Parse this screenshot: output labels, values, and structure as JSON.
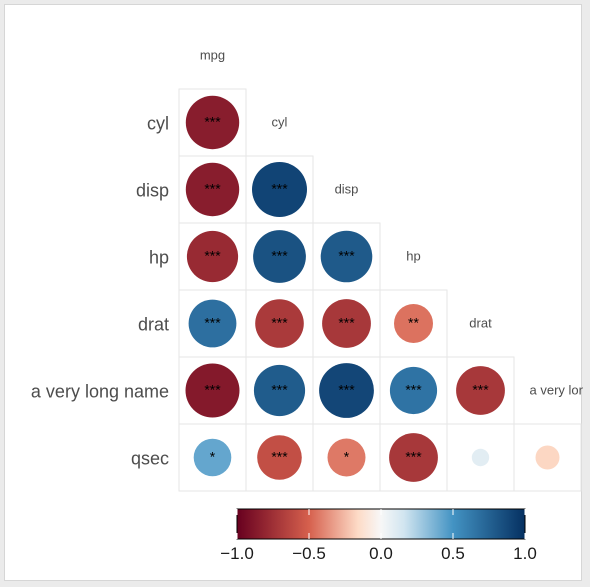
{
  "chart_data": {
    "type": "heatmap",
    "subtype": "correlation-matrix-lower-triangle-circles",
    "variables": [
      "mpg",
      "cyl",
      "disp",
      "hp",
      "drat",
      "a very long name",
      "qsec"
    ],
    "row_labels": [
      "cyl",
      "disp",
      "hp",
      "drat",
      "a very long name",
      "qsec"
    ],
    "col_labels": [
      "mpg",
      "cyl",
      "disp",
      "hp",
      "drat",
      "a very long name"
    ],
    "cells": [
      {
        "row": "cyl",
        "col": "mpg",
        "r": -0.85,
        "sig": "***"
      },
      {
        "row": "disp",
        "col": "mpg",
        "r": -0.85,
        "sig": "***"
      },
      {
        "row": "disp",
        "col": "cyl",
        "r": 0.9,
        "sig": "***"
      },
      {
        "row": "hp",
        "col": "mpg",
        "r": -0.78,
        "sig": "***"
      },
      {
        "row": "hp",
        "col": "cyl",
        "r": 0.83,
        "sig": "***"
      },
      {
        "row": "hp",
        "col": "disp",
        "r": 0.79,
        "sig": "***"
      },
      {
        "row": "drat",
        "col": "mpg",
        "r": 0.68,
        "sig": "***"
      },
      {
        "row": "drat",
        "col": "cyl",
        "r": -0.7,
        "sig": "***"
      },
      {
        "row": "drat",
        "col": "disp",
        "r": -0.71,
        "sig": "***"
      },
      {
        "row": "drat",
        "col": "hp",
        "r": -0.45,
        "sig": "**"
      },
      {
        "row": "a very long name",
        "col": "mpg",
        "r": -0.87,
        "sig": "***"
      },
      {
        "row": "a very long name",
        "col": "cyl",
        "r": 0.78,
        "sig": "***"
      },
      {
        "row": "a very long name",
        "col": "disp",
        "r": 0.89,
        "sig": "***"
      },
      {
        "row": "a very long name",
        "col": "hp",
        "r": 0.66,
        "sig": "***"
      },
      {
        "row": "a very long name",
        "col": "drat",
        "r": -0.71,
        "sig": "***"
      },
      {
        "row": "qsec",
        "col": "mpg",
        "r": 0.42,
        "sig": "*"
      },
      {
        "row": "qsec",
        "col": "cyl",
        "r": -0.59,
        "sig": "***"
      },
      {
        "row": "qsec",
        "col": "disp",
        "r": -0.43,
        "sig": "*"
      },
      {
        "row": "qsec",
        "col": "hp",
        "r": -0.71,
        "sig": "***"
      },
      {
        "row": "qsec",
        "col": "drat",
        "r": 0.09,
        "sig": ""
      },
      {
        "row": "qsec",
        "col": "a very long name",
        "r": -0.17,
        "sig": ""
      }
    ],
    "colorbar": {
      "ticks": [
        "−1.0",
        "−0.5",
        "0.0",
        "0.5",
        "1.0"
      ],
      "tick_values": [
        -1.0,
        -0.5,
        0.0,
        0.5,
        1.0
      ],
      "range": [
        -1,
        1
      ],
      "colors": {
        "neg_strong": "#67001f",
        "neg_mid": "#d6604d",
        "neg_light": "#fddbc7",
        "neutral": "#f7f7f7",
        "pos_light": "#d1e5f0",
        "pos_mid": "#4393c3",
        "pos_strong": "#053061"
      }
    },
    "legend_position": "bottom",
    "grid": true,
    "title": "",
    "xlabel": "",
    "ylabel": ""
  }
}
